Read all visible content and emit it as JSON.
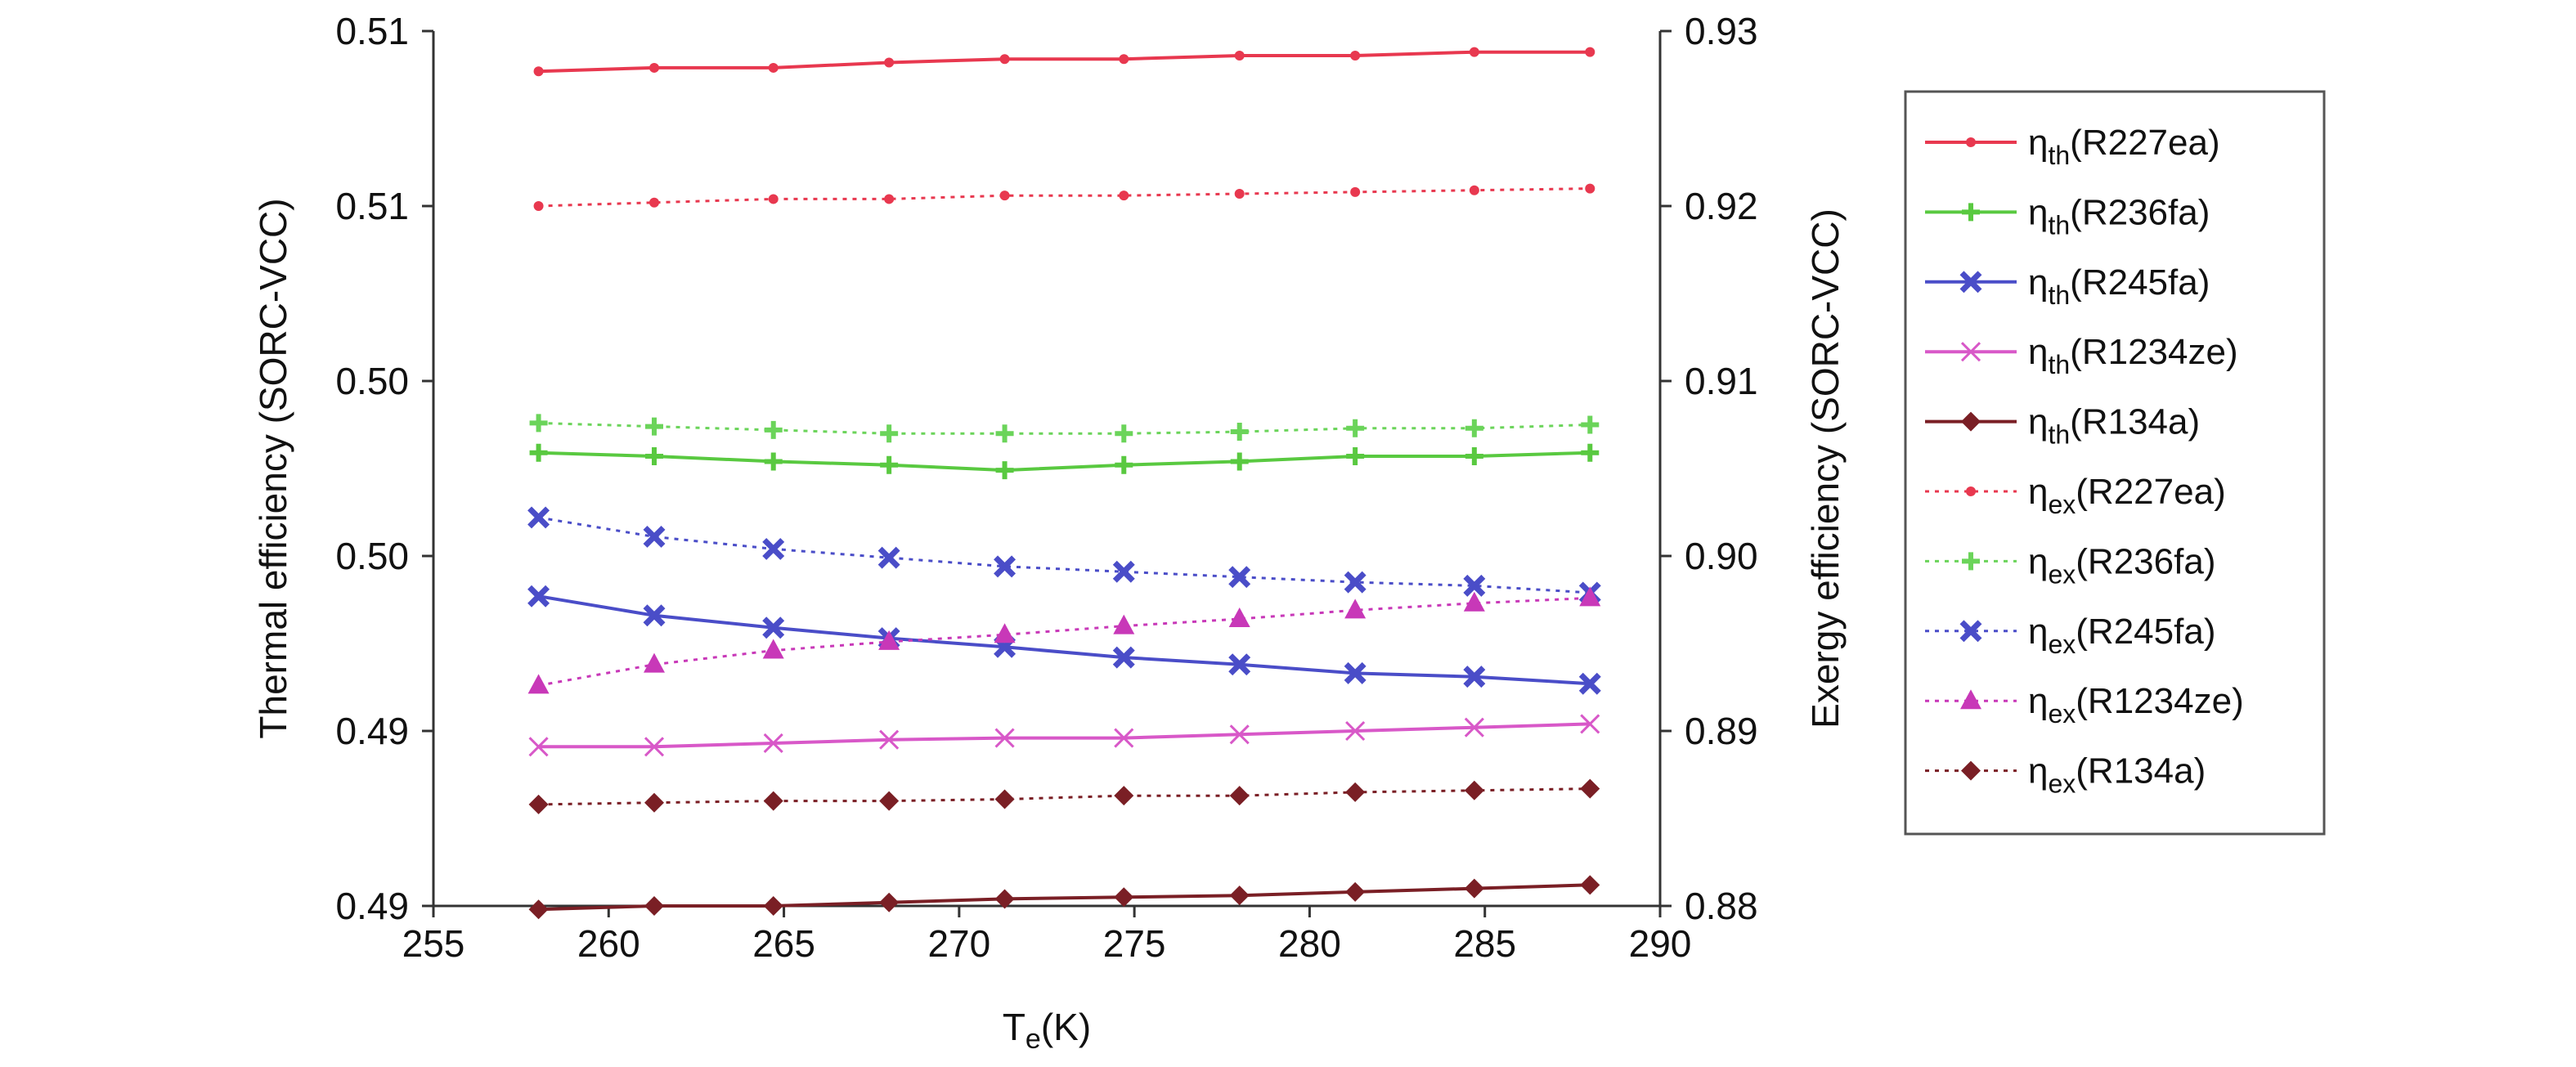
{
  "chart_data": {
    "type": "line",
    "xlabel_main": "T",
    "xlabel_sub": "e",
    "xlabel_unit": "(K)",
    "ylabel_left": "Thermal efficiency (SORC-VCC)",
    "ylabel_right": "Exergy efficiency (SORC-VCC)",
    "xlim": [
      255,
      290
    ],
    "ylim_left": [
      0.4875,
      0.5125
    ],
    "ylim_right": [
      0.88,
      0.93
    ],
    "x_ticks": [
      "255",
      "260",
      "265",
      "270",
      "275",
      "280",
      "285",
      "290"
    ],
    "left_ticks": [
      "0.49",
      "0.49",
      "0.50",
      "0.50",
      "0.51",
      "0.51"
    ],
    "right_ticks": [
      "0.88",
      "0.89",
      "0.90",
      "0.91",
      "0.92",
      "0.93"
    ],
    "x": [
      258,
      261.3,
      264.7,
      268,
      271.3,
      274.7,
      278,
      281.3,
      284.7,
      288
    ],
    "series": [
      {
        "name": "R227ea",
        "metric": "th",
        "axis": "left",
        "color": "#e8384f",
        "dash": false,
        "marker": "dot",
        "values": [
          0.51135,
          0.51145,
          0.51145,
          0.5116,
          0.5117,
          0.5117,
          0.5118,
          0.5118,
          0.5119,
          0.5119
        ]
      },
      {
        "name": "R236fa",
        "metric": "th",
        "axis": "left",
        "color": "#59c940",
        "dash": false,
        "marker": "plus",
        "values": [
          0.50045,
          0.50035,
          0.5002,
          0.5001,
          0.49995,
          0.5001,
          0.5002,
          0.50035,
          0.50035,
          0.50045
        ]
      },
      {
        "name": "R245fa",
        "metric": "th",
        "axis": "left",
        "color": "#4a4dc8",
        "dash": false,
        "marker": "x-bold",
        "values": [
          0.49635,
          0.4958,
          0.49545,
          0.49515,
          0.4949,
          0.4946,
          0.4944,
          0.49415,
          0.49405,
          0.49385
        ]
      },
      {
        "name": "R1234ze",
        "metric": "th",
        "axis": "left",
        "color": "#d858c8",
        "dash": false,
        "marker": "x-thin",
        "values": [
          0.49205,
          0.49205,
          0.49215,
          0.49225,
          0.4923,
          0.4923,
          0.4924,
          0.4925,
          0.4926,
          0.4927
        ]
      },
      {
        "name": "R134a",
        "metric": "th",
        "axis": "left",
        "color": "#7a1f25",
        "dash": false,
        "marker": "diamond",
        "values": [
          0.4874,
          0.4875,
          0.4875,
          0.4876,
          0.4877,
          0.48775,
          0.4878,
          0.4879,
          0.488,
          0.4881
        ]
      },
      {
        "name": "R227ea",
        "metric": "ex",
        "axis": "right",
        "color": "#e8384f",
        "dash": true,
        "marker": "dot",
        "values": [
          0.92,
          0.9202,
          0.9204,
          0.9204,
          0.9206,
          0.9206,
          0.9207,
          0.9208,
          0.9209,
          0.921
        ]
      },
      {
        "name": "R236fa",
        "metric": "ex",
        "axis": "right",
        "color": "#6bd45a",
        "dash": true,
        "marker": "plus",
        "values": [
          0.9076,
          0.9074,
          0.9072,
          0.907,
          0.907,
          0.907,
          0.9071,
          0.9073,
          0.9073,
          0.9075
        ]
      },
      {
        "name": "R245fa",
        "metric": "ex",
        "axis": "right",
        "color": "#4a4dc8",
        "dash": true,
        "marker": "x-bold",
        "values": [
          0.9022,
          0.9011,
          0.9004,
          0.8999,
          0.8994,
          0.8991,
          0.8988,
          0.8985,
          0.8983,
          0.8979
        ]
      },
      {
        "name": "R1234ze",
        "metric": "ex",
        "axis": "right",
        "color": "#c838b8",
        "dash": true,
        "marker": "triangle",
        "values": [
          0.8926,
          0.8938,
          0.8946,
          0.8951,
          0.8955,
          0.896,
          0.8964,
          0.8969,
          0.8973,
          0.8976
        ]
      },
      {
        "name": "R134a",
        "metric": "ex",
        "axis": "right",
        "color": "#7a1f25",
        "dash": true,
        "marker": "diamond",
        "values": [
          0.8858,
          0.8859,
          0.886,
          0.886,
          0.8861,
          0.8863,
          0.8863,
          0.8865,
          0.8866,
          0.8867
        ]
      }
    ],
    "legend_placement": "right-outside",
    "grid": false
  }
}
